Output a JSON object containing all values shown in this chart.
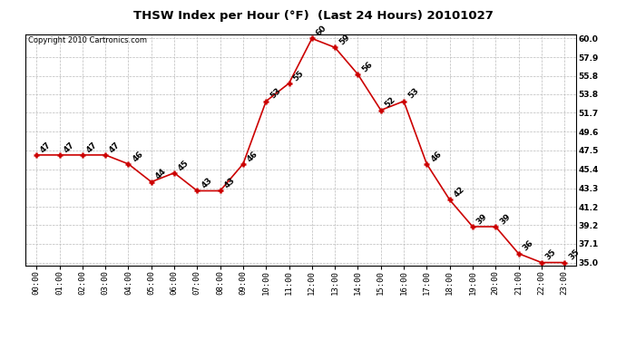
{
  "title": "THSW Index per Hour (°F)  (Last 24 Hours) 20101027",
  "copyright": "Copyright 2010 Cartronics.com",
  "hours": [
    "00:00",
    "01:00",
    "02:00",
    "03:00",
    "04:00",
    "05:00",
    "06:00",
    "07:00",
    "08:00",
    "09:00",
    "10:00",
    "11:00",
    "12:00",
    "13:00",
    "14:00",
    "15:00",
    "16:00",
    "17:00",
    "18:00",
    "19:00",
    "20:00",
    "21:00",
    "22:00",
    "23:00"
  ],
  "values": [
    47,
    47,
    47,
    47,
    46,
    44,
    45,
    43,
    43,
    46,
    53,
    55,
    60,
    59,
    56,
    52,
    53,
    46,
    42,
    39,
    39,
    36,
    35,
    35
  ],
  "line_color": "#cc0000",
  "marker_color": "#cc0000",
  "bg_color": "#ffffff",
  "grid_color": "#bbbbbb",
  "ylim_min": 35.0,
  "ylim_max": 60.0,
  "yticks": [
    35.0,
    37.1,
    39.2,
    41.2,
    43.3,
    45.4,
    47.5,
    49.6,
    51.7,
    53.8,
    55.8,
    57.9,
    60.0
  ],
  "title_fontsize": 9.5,
  "label_fontsize": 6.5,
  "tick_fontsize": 6.5,
  "copyright_fontsize": 6
}
